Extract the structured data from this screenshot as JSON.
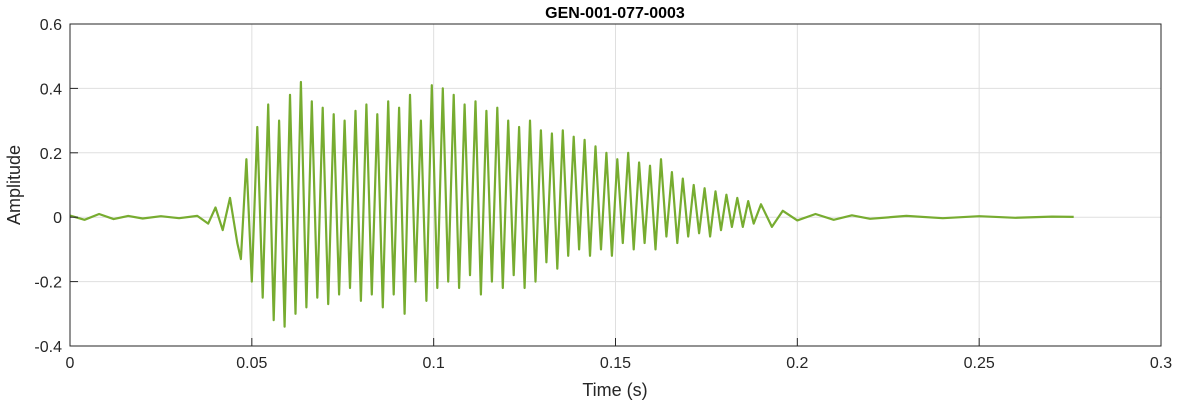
{
  "chart_data": {
    "type": "line",
    "title": "GEN-001-077-0003",
    "xlabel": "Time (s)",
    "ylabel": "Amplitude",
    "xlim": [
      0,
      0.3
    ],
    "ylim": [
      -0.4,
      0.6
    ],
    "xticks": [
      0,
      0.05,
      0.1,
      0.15,
      0.2,
      0.25,
      0.3
    ],
    "xtick_labels": [
      "0",
      "0.05",
      "0.1",
      "0.15",
      "0.2",
      "0.25",
      "0.3"
    ],
    "yticks": [
      -0.4,
      -0.2,
      0,
      0.2,
      0.4,
      0.6
    ],
    "ytick_labels": [
      "-0.4",
      "-0.2",
      "0",
      "0.2",
      "0.4",
      "0.6"
    ],
    "grid": true,
    "line_color": "#77ac30",
    "series": [
      {
        "x": [
          0,
          0.004,
          0.008,
          0.012,
          0.016,
          0.02,
          0.025,
          0.03,
          0.035,
          0.038,
          0.04,
          0.042,
          0.044,
          0.046,
          0.047,
          0.0485,
          0.05,
          0.0515,
          0.053,
          0.0545,
          0.056,
          0.0575,
          0.059,
          0.0605,
          0.062,
          0.0635,
          0.065,
          0.0665,
          0.068,
          0.0695,
          0.071,
          0.0725,
          0.074,
          0.0755,
          0.077,
          0.0785,
          0.08,
          0.0815,
          0.083,
          0.0845,
          0.086,
          0.0875,
          0.089,
          0.0905,
          0.092,
          0.0935,
          0.095,
          0.0965,
          0.098,
          0.0995,
          0.101,
          0.1025,
          0.104,
          0.1055,
          0.107,
          0.1085,
          0.11,
          0.1115,
          0.113,
          0.1145,
          0.116,
          0.1175,
          0.119,
          0.1205,
          0.122,
          0.1235,
          0.125,
          0.1265,
          0.128,
          0.1295,
          0.131,
          0.1325,
          0.134,
          0.1355,
          0.137,
          0.1385,
          0.14,
          0.1415,
          0.143,
          0.1445,
          0.146,
          0.1475,
          0.149,
          0.1505,
          0.152,
          0.1535,
          0.155,
          0.1565,
          0.158,
          0.1595,
          0.161,
          0.1625,
          0.164,
          0.1655,
          0.167,
          0.1685,
          0.17,
          0.1715,
          0.173,
          0.1745,
          0.176,
          0.1775,
          0.179,
          0.1805,
          0.182,
          0.1835,
          0.185,
          0.1865,
          0.188,
          0.19,
          0.193,
          0.196,
          0.2,
          0.205,
          0.21,
          0.215,
          0.22,
          0.23,
          0.24,
          0.25,
          0.26,
          0.27,
          0.276
        ],
        "y": [
          0.005,
          -0.008,
          0.01,
          -0.006,
          0.004,
          -0.004,
          0.003,
          -0.003,
          0.004,
          -0.02,
          0.03,
          -0.04,
          0.06,
          -0.08,
          -0.13,
          0.18,
          -0.2,
          0.28,
          -0.25,
          0.35,
          -0.32,
          0.3,
          -0.34,
          0.38,
          -0.3,
          0.42,
          -0.28,
          0.36,
          -0.25,
          0.34,
          -0.27,
          0.32,
          -0.24,
          0.3,
          -0.22,
          0.33,
          -0.26,
          0.35,
          -0.24,
          0.32,
          -0.28,
          0.36,
          -0.24,
          0.34,
          -0.3,
          0.38,
          -0.2,
          0.3,
          -0.26,
          0.41,
          -0.22,
          0.4,
          -0.2,
          0.38,
          -0.22,
          0.35,
          -0.18,
          0.36,
          -0.24,
          0.33,
          -0.2,
          0.34,
          -0.22,
          0.3,
          -0.18,
          0.28,
          -0.22,
          0.3,
          -0.2,
          0.27,
          -0.14,
          0.26,
          -0.16,
          0.27,
          -0.12,
          0.25,
          -0.1,
          0.24,
          -0.12,
          0.22,
          -0.1,
          0.2,
          -0.12,
          0.18,
          -0.08,
          0.2,
          -0.1,
          0.17,
          -0.08,
          0.16,
          -0.1,
          0.18,
          -0.06,
          0.14,
          -0.08,
          0.12,
          -0.06,
          0.1,
          -0.05,
          0.09,
          -0.06,
          0.08,
          -0.04,
          0.07,
          -0.03,
          0.06,
          -0.03,
          0.05,
          -0.02,
          0.04,
          -0.03,
          0.02,
          -0.01,
          0.01,
          -0.008,
          0.006,
          -0.005,
          0.004,
          -0.003,
          0.003,
          -0.002,
          0.002,
          0.001
        ]
      }
    ]
  }
}
